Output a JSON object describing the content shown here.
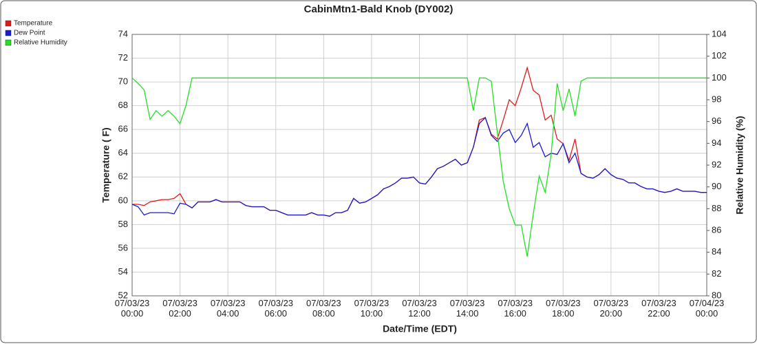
{
  "chart_data": {
    "type": "line",
    "title": "CabinMtn1-Bald Knob (DY002)",
    "x_label": "Date/Time (EDT)",
    "y_label": "Temperature ( F)",
    "y2_label": "Relative Humidity (%)",
    "xlim": [
      "07/03/23 00:00",
      "07/04/23 00:00"
    ],
    "xticks": [
      "07/03/23 00:00",
      "07/03/23 02:00",
      "07/03/23 04:00",
      "07/03/23 06:00",
      "07/03/23 08:00",
      "07/03/23 10:00",
      "07/03/23 12:00",
      "07/03/23 14:00",
      "07/03/23 16:00",
      "07/03/23 18:00",
      "07/03/23 20:00",
      "07/03/23 22:00",
      "07/04/23 00:00"
    ],
    "ylim": [
      52,
      74
    ],
    "yticks": [
      52,
      54,
      56,
      58,
      60,
      62,
      64,
      66,
      68,
      70,
      72,
      74
    ],
    "y2lim": [
      80,
      104
    ],
    "y2ticks": [
      80,
      82,
      84,
      86,
      88,
      90,
      92,
      94,
      96,
      98,
      100,
      102,
      104
    ],
    "grid": true,
    "legend": "top-left",
    "x": [
      "07/03/23 00:00",
      "07/03/23 00:15",
      "07/03/23 00:30",
      "07/03/23 00:45",
      "07/03/23 01:00",
      "07/03/23 01:15",
      "07/03/23 01:30",
      "07/03/23 01:45",
      "07/03/23 02:00",
      "07/03/23 02:15",
      "07/03/23 02:30",
      "07/03/23 02:45",
      "07/03/23 03:00",
      "07/03/23 03:15",
      "07/03/23 03:30",
      "07/03/23 03:45",
      "07/03/23 04:00",
      "07/03/23 04:15",
      "07/03/23 04:30",
      "07/03/23 04:45",
      "07/03/23 05:00",
      "07/03/23 05:15",
      "07/03/23 05:30",
      "07/03/23 05:45",
      "07/03/23 06:00",
      "07/03/23 06:15",
      "07/03/23 06:30",
      "07/03/23 06:45",
      "07/03/23 07:00",
      "07/03/23 07:15",
      "07/03/23 07:30",
      "07/03/23 07:45",
      "07/03/23 08:00",
      "07/03/23 08:15",
      "07/03/23 08:30",
      "07/03/23 08:45",
      "07/03/23 09:00",
      "07/03/23 09:15",
      "07/03/23 09:30",
      "07/03/23 09:45",
      "07/03/23 10:00",
      "07/03/23 10:15",
      "07/03/23 10:30",
      "07/03/23 10:45",
      "07/03/23 11:00",
      "07/03/23 11:15",
      "07/03/23 11:30",
      "07/03/23 11:45",
      "07/03/23 12:00",
      "07/03/23 12:15",
      "07/03/23 12:30",
      "07/03/23 12:45",
      "07/03/23 13:00",
      "07/03/23 13:15",
      "07/03/23 13:30",
      "07/03/23 13:45",
      "07/03/23 14:00",
      "07/03/23 14:15",
      "07/03/23 14:30",
      "07/03/23 14:45",
      "07/03/23 15:00",
      "07/03/23 15:15",
      "07/03/23 15:30",
      "07/03/23 15:45",
      "07/03/23 16:00",
      "07/03/23 16:15",
      "07/03/23 16:30",
      "07/03/23 16:45",
      "07/03/23 17:00",
      "07/03/23 17:15",
      "07/03/23 17:30",
      "07/03/23 17:45",
      "07/03/23 18:00",
      "07/03/23 18:15",
      "07/03/23 18:30",
      "07/03/23 18:45",
      "07/03/23 19:00",
      "07/03/23 19:15",
      "07/03/23 19:30",
      "07/03/23 19:45",
      "07/03/23 20:00",
      "07/03/23 20:15",
      "07/03/23 20:30",
      "07/03/23 20:45",
      "07/03/23 21:00",
      "07/03/23 21:15",
      "07/03/23 21:30",
      "07/03/23 21:45",
      "07/03/23 22:00",
      "07/03/23 22:15",
      "07/03/23 22:30",
      "07/03/23 22:45",
      "07/03/23 23:00",
      "07/03/23 23:15",
      "07/03/23 23:30",
      "07/03/23 23:45",
      "07/04/23 00:00"
    ],
    "series": [
      {
        "name": "Temperature",
        "color": "#e01a1a",
        "values": [
          59.7,
          59.7,
          59.6,
          59.9,
          60.0,
          60.1,
          60.1,
          60.2,
          60.6,
          59.7,
          59.4,
          59.9,
          59.9,
          59.9,
          60.1,
          59.9,
          59.9,
          59.9,
          59.9,
          59.6,
          59.5,
          59.5,
          59.5,
          59.2,
          59.2,
          59.0,
          58.8,
          58.8,
          58.8,
          58.8,
          59.0,
          58.8,
          58.8,
          58.7,
          59.0,
          59.0,
          59.2,
          60.2,
          59.8,
          59.9,
          60.2,
          60.5,
          61.0,
          61.2,
          61.5,
          61.9,
          61.9,
          62.0,
          61.5,
          61.4,
          62.0,
          62.7,
          62.9,
          63.2,
          63.5,
          63.0,
          63.2,
          64.5,
          66.8,
          67.0,
          65.6,
          65.2,
          66.8,
          68.5,
          68.0,
          69.5,
          71.2,
          69.3,
          68.9,
          66.8,
          67.2,
          65.2,
          64.8,
          63.4,
          65.2,
          62.3,
          62.0,
          61.9,
          62.2,
          62.7,
          62.2,
          61.9,
          61.8,
          61.5,
          61.5,
          61.2,
          61.0,
          61.0,
          60.8,
          60.7,
          60.8,
          61.0,
          60.8,
          60.8,
          60.8,
          60.7,
          60.7
        ]
      },
      {
        "name": "Dew Point",
        "color": "#1a1ad0",
        "values": [
          59.7,
          59.5,
          58.8,
          59.0,
          59.0,
          59.0,
          59.0,
          58.9,
          59.8,
          59.7,
          59.4,
          59.9,
          59.9,
          59.9,
          60.1,
          59.9,
          59.9,
          59.9,
          59.9,
          59.6,
          59.5,
          59.5,
          59.5,
          59.2,
          59.2,
          59.0,
          58.8,
          58.8,
          58.8,
          58.8,
          59.0,
          58.8,
          58.8,
          58.7,
          59.0,
          59.0,
          59.2,
          60.2,
          59.8,
          59.9,
          60.2,
          60.5,
          61.0,
          61.2,
          61.5,
          61.9,
          61.9,
          62.0,
          61.5,
          61.4,
          62.0,
          62.7,
          62.9,
          63.2,
          63.5,
          63.0,
          63.2,
          64.5,
          66.5,
          67.0,
          65.5,
          65.0,
          65.7,
          66.0,
          64.9,
          65.5,
          66.5,
          64.5,
          64.9,
          63.7,
          64.0,
          63.9,
          64.8,
          63.2,
          64.0,
          62.3,
          62.0,
          61.9,
          62.2,
          62.7,
          62.2,
          61.9,
          61.8,
          61.5,
          61.5,
          61.2,
          61.0,
          61.0,
          60.8,
          60.7,
          60.8,
          61.0,
          60.8,
          60.8,
          60.8,
          60.7,
          60.7
        ]
      },
      {
        "name": "Relative Humidity",
        "color": "#22e022",
        "axis": "y2",
        "values": [
          100,
          99.5,
          98.9,
          96.2,
          97,
          96.5,
          97,
          96.5,
          95.8,
          97.5,
          100,
          100,
          100,
          100,
          100,
          100,
          100,
          100,
          100,
          100,
          100,
          100,
          100,
          100,
          100,
          100,
          100,
          100,
          100,
          100,
          100,
          100,
          100,
          100,
          100,
          100,
          100,
          100,
          100,
          100,
          100,
          100,
          100,
          100,
          100,
          100,
          100,
          100,
          100,
          100,
          100,
          100,
          100,
          100,
          100,
          100,
          100,
          97,
          100,
          100,
          99.7,
          95,
          90.5,
          88,
          86.5,
          86.5,
          83.6,
          87.5,
          91,
          89.5,
          93,
          99.5,
          97,
          99,
          96.5,
          99.7,
          100,
          100,
          100,
          100,
          100,
          100,
          100,
          100,
          100,
          100,
          100,
          100,
          100,
          100,
          100,
          100,
          100,
          100,
          100,
          100,
          100
        ]
      }
    ]
  }
}
